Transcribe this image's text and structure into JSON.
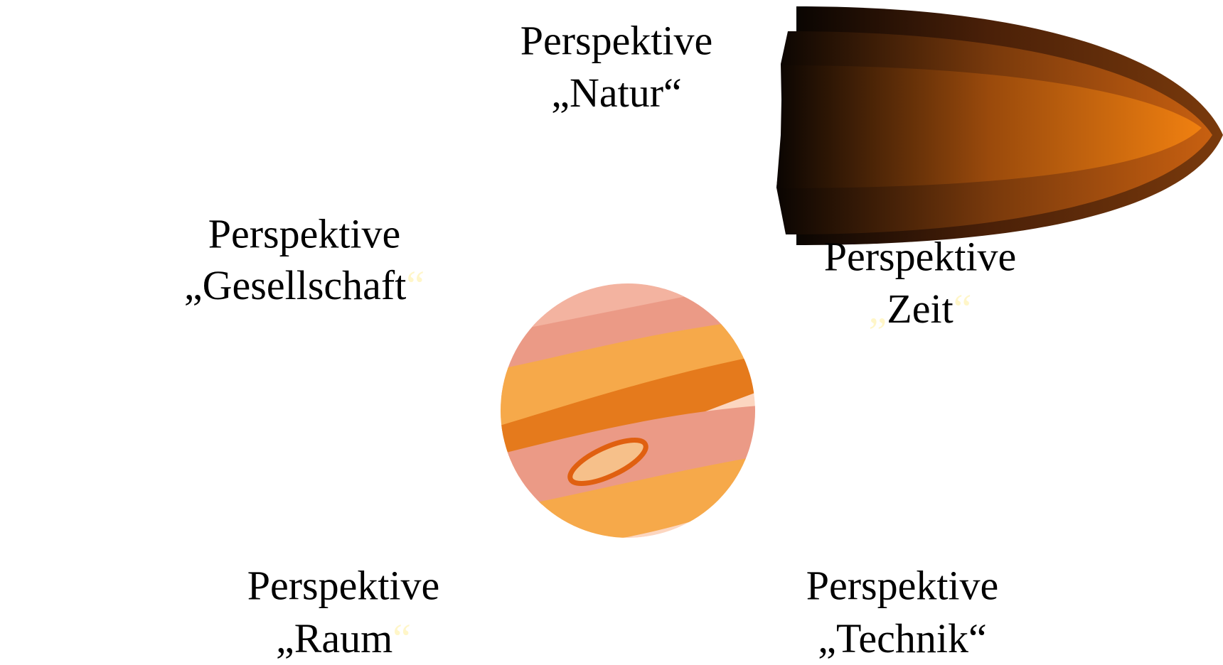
{
  "labels": [
    {
      "line1": "Perspektive",
      "open": "„",
      "name": "Natur",
      "close": "“"
    },
    {
      "line1": "Perspektive",
      "open": "„",
      "name": "Gesellschaft",
      "close": "“"
    },
    {
      "line1": "Perspektive",
      "open": "„",
      "name": "Zeit",
      "close": "“"
    },
    {
      "line1": "Perspektive",
      "open": "„",
      "name": "Raum",
      "close": "“"
    },
    {
      "line1": "Perspektive",
      "open": "„",
      "name": "Technik",
      "close": "“"
    }
  ]
}
